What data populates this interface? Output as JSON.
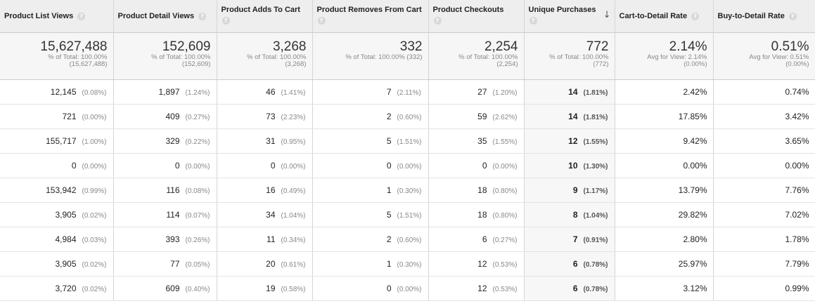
{
  "headers": [
    {
      "label": "Product List Views",
      "help": "?"
    },
    {
      "label": "Product Detail Views",
      "help": "?"
    },
    {
      "label": "Product Adds To Cart",
      "help": "?"
    },
    {
      "label": "Product Removes From Cart",
      "help": "?"
    },
    {
      "label": "Product Checkouts",
      "help": "?"
    },
    {
      "label": "Unique Purchases",
      "help": "?",
      "sort_icon": "↓"
    },
    {
      "label": "Cart-to-Detail Rate",
      "help": "?"
    },
    {
      "label": "Buy-to-Detail Rate",
      "help": "?"
    }
  ],
  "totals": [
    {
      "value": "15,627,488",
      "line1": "% of Total: 100.00%",
      "line2": "(15,627,488)"
    },
    {
      "value": "152,609",
      "line1": "% of Total: 100.00%",
      "line2": "(152,609)"
    },
    {
      "value": "3,268",
      "line1": "% of Total: 100.00%",
      "line2": "(3,268)"
    },
    {
      "value": "332",
      "line1": "% of Total: 100.00% (332)",
      "line2": ""
    },
    {
      "value": "2,254",
      "line1": "% of Total: 100.00%",
      "line2": "(2,254)"
    },
    {
      "value": "772",
      "line1": "% of Total: 100.00%",
      "line2": "(772)"
    },
    {
      "value": "2.14%",
      "line1": "Avg for View: 2.14%",
      "line2": "(0.00%)"
    },
    {
      "value": "0.51%",
      "line1": "Avg for View: 0.51%",
      "line2": "(0.00%)"
    }
  ],
  "rows": [
    [
      {
        "v": "12,145",
        "p": "(0.08%)"
      },
      {
        "v": "1,897",
        "p": "(1.24%)"
      },
      {
        "v": "46",
        "p": "(1.41%)"
      },
      {
        "v": "7",
        "p": "(2.11%)"
      },
      {
        "v": "27",
        "p": "(1.20%)"
      },
      {
        "v": "14",
        "p": "(1.81%)"
      },
      {
        "v": "2.42%"
      },
      {
        "v": "0.74%"
      }
    ],
    [
      {
        "v": "721",
        "p": "(0.00%)"
      },
      {
        "v": "409",
        "p": "(0.27%)"
      },
      {
        "v": "73",
        "p": "(2.23%)"
      },
      {
        "v": "2",
        "p": "(0.60%)"
      },
      {
        "v": "59",
        "p": "(2.62%)"
      },
      {
        "v": "14",
        "p": "(1.81%)"
      },
      {
        "v": "17.85%"
      },
      {
        "v": "3.42%"
      }
    ],
    [
      {
        "v": "155,717",
        "p": "(1.00%)"
      },
      {
        "v": "329",
        "p": "(0.22%)"
      },
      {
        "v": "31",
        "p": "(0.95%)"
      },
      {
        "v": "5",
        "p": "(1.51%)"
      },
      {
        "v": "35",
        "p": "(1.55%)"
      },
      {
        "v": "12",
        "p": "(1.55%)"
      },
      {
        "v": "9.42%"
      },
      {
        "v": "3.65%"
      }
    ],
    [
      {
        "v": "0",
        "p": "(0.00%)"
      },
      {
        "v": "0",
        "p": "(0.00%)"
      },
      {
        "v": "0",
        "p": "(0.00%)"
      },
      {
        "v": "0",
        "p": "(0.00%)"
      },
      {
        "v": "0",
        "p": "(0.00%)"
      },
      {
        "v": "10",
        "p": "(1.30%)"
      },
      {
        "v": "0.00%"
      },
      {
        "v": "0.00%"
      }
    ],
    [
      {
        "v": "153,942",
        "p": "(0.99%)"
      },
      {
        "v": "116",
        "p": "(0.08%)"
      },
      {
        "v": "16",
        "p": "(0.49%)"
      },
      {
        "v": "1",
        "p": "(0.30%)"
      },
      {
        "v": "18",
        "p": "(0.80%)"
      },
      {
        "v": "9",
        "p": "(1.17%)"
      },
      {
        "v": "13.79%"
      },
      {
        "v": "7.76%"
      }
    ],
    [
      {
        "v": "3,905",
        "p": "(0.02%)"
      },
      {
        "v": "114",
        "p": "(0.07%)"
      },
      {
        "v": "34",
        "p": "(1.04%)"
      },
      {
        "v": "5",
        "p": "(1.51%)"
      },
      {
        "v": "18",
        "p": "(0.80%)"
      },
      {
        "v": "8",
        "p": "(1.04%)"
      },
      {
        "v": "29.82%"
      },
      {
        "v": "7.02%"
      }
    ],
    [
      {
        "v": "4,984",
        "p": "(0.03%)"
      },
      {
        "v": "393",
        "p": "(0.26%)"
      },
      {
        "v": "11",
        "p": "(0.34%)"
      },
      {
        "v": "2",
        "p": "(0.60%)"
      },
      {
        "v": "6",
        "p": "(0.27%)"
      },
      {
        "v": "7",
        "p": "(0.91%)"
      },
      {
        "v": "2.80%"
      },
      {
        "v": "1.78%"
      }
    ],
    [
      {
        "v": "3,905",
        "p": "(0.02%)"
      },
      {
        "v": "77",
        "p": "(0.05%)"
      },
      {
        "v": "20",
        "p": "(0.61%)"
      },
      {
        "v": "1",
        "p": "(0.30%)"
      },
      {
        "v": "12",
        "p": "(0.53%)"
      },
      {
        "v": "6",
        "p": "(0.78%)"
      },
      {
        "v": "25.97%"
      },
      {
        "v": "7.79%"
      }
    ],
    [
      {
        "v": "3,720",
        "p": "(0.02%)"
      },
      {
        "v": "609",
        "p": "(0.40%)"
      },
      {
        "v": "19",
        "p": "(0.58%)"
      },
      {
        "v": "0",
        "p": "(0.00%)"
      },
      {
        "v": "12",
        "p": "(0.53%)"
      },
      {
        "v": "6",
        "p": "(0.78%)"
      },
      {
        "v": "3.12%"
      },
      {
        "v": "0.99%"
      }
    ]
  ]
}
